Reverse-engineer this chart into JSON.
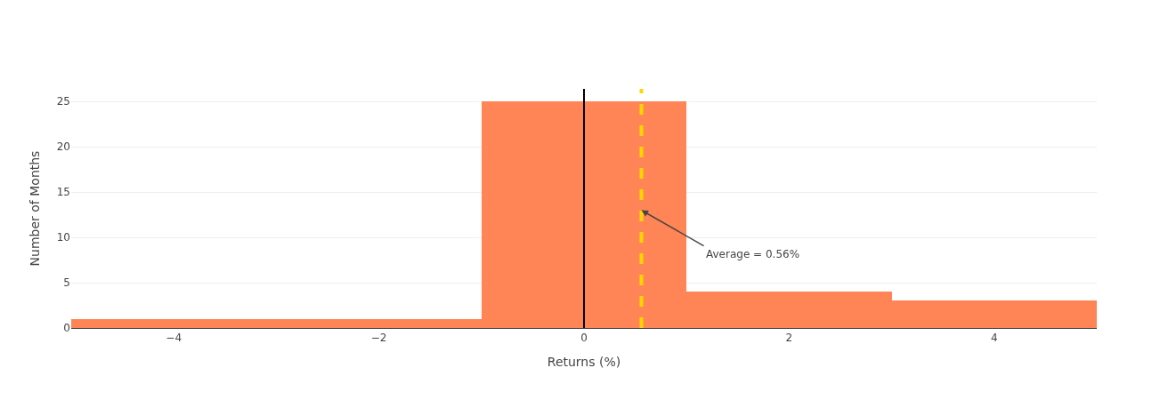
{
  "chart_data": {
    "type": "histogram",
    "xlabel": "Returns (%)",
    "ylabel": "Number of Months",
    "bins": [
      -5,
      -1,
      1,
      3,
      5
    ],
    "values": [
      1,
      25,
      4,
      3
    ],
    "color": "#ff8456",
    "xlim": [
      -5,
      5
    ],
    "xticks": [
      {
        "value": -4,
        "label": "−4"
      },
      {
        "value": -2,
        "label": "−2"
      },
      0,
      2,
      4
    ],
    "ylim": [
      0,
      26.4
    ],
    "yticks": [
      0,
      5,
      10,
      15,
      20,
      25
    ],
    "grid": "y",
    "ref_lines": [
      {
        "axis": "x",
        "value": 0,
        "color": "#000000",
        "line_style": "solid"
      },
      {
        "axis": "x",
        "value": 0.56,
        "color": "#ffd700",
        "line_style": "dashed"
      }
    ],
    "annotations": [
      {
        "text": "Average = 0.56%",
        "x": 0.56,
        "y": 13
      }
    ]
  }
}
